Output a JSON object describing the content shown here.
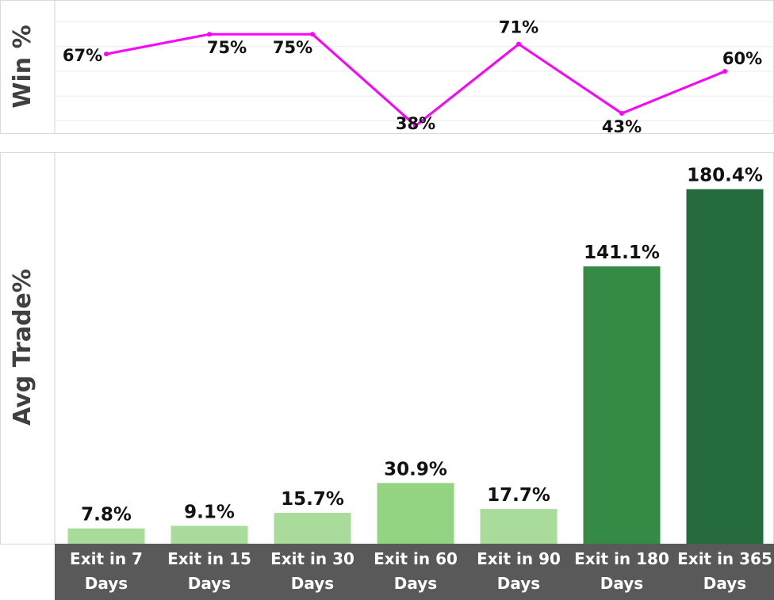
{
  "colors": {
    "line": "#ff00ff",
    "bar_light": "#a9dc9b",
    "bar_mid": "#92d482",
    "bar_dark1": "#358a46",
    "bar_dark2": "#256b3d",
    "axis_band": "#595959",
    "text": "#111111"
  },
  "chart_data": [
    {
      "type": "line",
      "categories": [
        "Exit in 7 Days",
        "Exit in 15 Days",
        "Exit in 30 Days",
        "Exit in 60 Days",
        "Exit in 90 Days",
        "Exit in 180 Days",
        "Exit in 365 Days"
      ],
      "series": [
        {
          "values": [
            67,
            75,
            75,
            38,
            71,
            43,
            60
          ]
        }
      ],
      "data_labels": [
        "67%",
        "75%",
        "75%",
        "38%",
        "71%",
        "43%",
        "60%"
      ],
      "ylabel": "Win %",
      "ylim": [
        35,
        85
      ],
      "grid": true
    },
    {
      "type": "bar",
      "categories": [
        "Exit in 7 Days",
        "Exit in 15 Days",
        "Exit in 30 Days",
        "Exit in 60 Days",
        "Exit in 90 Days",
        "Exit in 180 Days",
        "Exit in 365 Days"
      ],
      "category_lines": [
        [
          "Exit in 7",
          "Days"
        ],
        [
          "Exit in 15",
          "Days"
        ],
        [
          "Exit in 30",
          "Days"
        ],
        [
          "Exit in 60",
          "Days"
        ],
        [
          "Exit in 90",
          "Days"
        ],
        [
          "Exit in 180",
          "Days"
        ],
        [
          "Exit in 365",
          "Days"
        ]
      ],
      "values": [
        7.8,
        9.1,
        15.7,
        30.9,
        17.7,
        141.1,
        180.4
      ],
      "data_labels": [
        "7.8%",
        "9.1%",
        "15.7%",
        "30.9%",
        "17.7%",
        "141.1%",
        "180.4%"
      ],
      "bar_colors": [
        "bar_light",
        "bar_light",
        "bar_light",
        "bar_mid",
        "bar_light",
        "bar_dark1",
        "bar_dark2"
      ],
      "ylabel": "Avg Trade%",
      "ylim": [
        0,
        196
      ],
      "grid": false
    }
  ]
}
